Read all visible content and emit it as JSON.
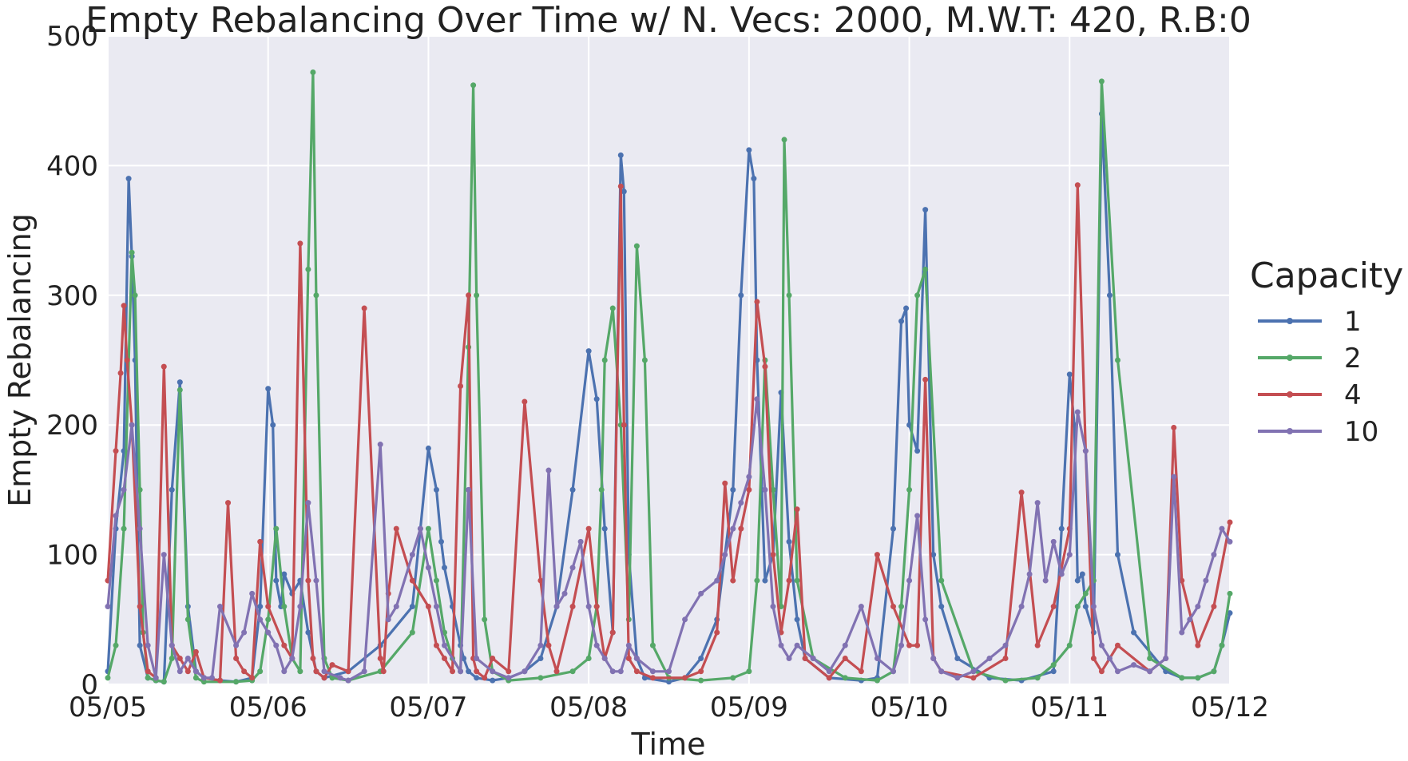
{
  "chart_data": {
    "type": "line",
    "title": "Empty Rebalancing Over Time w/ N. Vecs: 2000, M.W.T: 420, R.B:0",
    "xlabel": "Time",
    "ylabel": "Empty Rebalancing",
    "xlim": [
      0,
      7
    ],
    "ylim": [
      0,
      500
    ],
    "yticks": [
      0,
      100,
      200,
      300,
      400,
      500
    ],
    "x_tick_labels": [
      "05/05",
      "05/06",
      "05/07",
      "05/08",
      "05/09",
      "05/10",
      "05/11",
      "05/12"
    ],
    "grid": true,
    "legend": {
      "title": "Capacity",
      "position": "right"
    },
    "x_unit": "days since 05/05",
    "series": [
      {
        "name": "1",
        "color": "#4C72B0",
        "x": [
          0.0,
          0.05,
          0.1,
          0.13,
          0.15,
          0.17,
          0.2,
          0.25,
          0.3,
          0.35,
          0.4,
          0.45,
          0.5,
          0.55,
          0.6,
          0.7,
          0.8,
          0.9,
          0.95,
          1.0,
          1.03,
          1.05,
          1.08,
          1.1,
          1.15,
          1.2,
          1.25,
          1.3,
          1.35,
          1.5,
          1.7,
          1.9,
          1.95,
          2.0,
          2.05,
          2.08,
          2.1,
          2.15,
          2.2,
          2.22,
          2.25,
          2.3,
          2.4,
          2.5,
          2.6,
          2.7,
          2.8,
          2.9,
          3.0,
          3.05,
          3.1,
          3.15,
          3.2,
          3.22,
          3.25,
          3.3,
          3.35,
          3.5,
          3.6,
          3.7,
          3.8,
          3.9,
          3.95,
          4.0,
          4.03,
          4.05,
          4.08,
          4.1,
          4.15,
          4.2,
          4.25,
          4.3,
          4.35,
          4.5,
          4.7,
          4.8,
          4.9,
          4.95,
          4.98,
          5.0,
          5.05,
          5.1,
          5.15,
          5.2,
          5.3,
          5.5,
          5.7,
          5.9,
          5.95,
          6.0,
          6.03,
          6.05,
          6.08,
          6.1,
          6.15,
          6.2,
          6.25,
          6.3,
          6.4,
          6.6,
          6.7,
          6.8,
          6.9,
          6.95,
          7.0
        ],
        "y": [
          10,
          120,
          180,
          390,
          330,
          250,
          30,
          5,
          3,
          2,
          150,
          233,
          60,
          10,
          5,
          3,
          2,
          5,
          60,
          228,
          200,
          80,
          60,
          85,
          70,
          80,
          40,
          10,
          5,
          10,
          30,
          60,
          120,
          182,
          150,
          110,
          90,
          60,
          30,
          20,
          10,
          5,
          3,
          5,
          10,
          20,
          60,
          150,
          257,
          220,
          120,
          40,
          408,
          380,
          100,
          20,
          5,
          2,
          5,
          20,
          50,
          150,
          300,
          412,
          390,
          250,
          150,
          80,
          100,
          225,
          110,
          50,
          20,
          5,
          3,
          5,
          120,
          280,
          290,
          200,
          180,
          366,
          100,
          60,
          20,
          5,
          3,
          10,
          120,
          239,
          200,
          80,
          85,
          60,
          40,
          440,
          300,
          100,
          40,
          10,
          5,
          5,
          10,
          30,
          55
        ]
      },
      {
        "name": "2",
        "color": "#55A868",
        "x": [
          0.0,
          0.05,
          0.1,
          0.15,
          0.17,
          0.2,
          0.22,
          0.25,
          0.3,
          0.35,
          0.4,
          0.45,
          0.5,
          0.55,
          0.6,
          0.8,
          0.9,
          0.95,
          1.0,
          1.05,
          1.1,
          1.15,
          1.2,
          1.25,
          1.28,
          1.3,
          1.35,
          1.4,
          1.5,
          1.7,
          1.9,
          2.0,
          2.05,
          2.1,
          2.15,
          2.2,
          2.25,
          2.28,
          2.3,
          2.35,
          2.4,
          2.5,
          2.7,
          2.9,
          3.0,
          3.05,
          3.08,
          3.1,
          3.15,
          3.2,
          3.25,
          3.3,
          3.35,
          3.4,
          3.5,
          3.7,
          3.9,
          4.0,
          4.05,
          4.1,
          4.15,
          4.2,
          4.22,
          4.25,
          4.3,
          4.4,
          4.6,
          4.8,
          4.9,
          4.95,
          5.0,
          5.05,
          5.1,
          5.2,
          5.4,
          5.6,
          5.8,
          5.9,
          6.0,
          6.05,
          6.1,
          6.15,
          6.2,
          6.3,
          6.5,
          6.7,
          6.8,
          6.9,
          6.95,
          7.0
        ],
        "y": [
          5,
          30,
          120,
          333,
          300,
          150,
          40,
          5,
          3,
          2,
          20,
          227,
          50,
          5,
          2,
          2,
          3,
          10,
          50,
          120,
          60,
          20,
          10,
          320,
          472,
          300,
          20,
          5,
          3,
          10,
          40,
          120,
          80,
          40,
          20,
          10,
          260,
          462,
          300,
          50,
          10,
          3,
          5,
          10,
          20,
          60,
          150,
          250,
          290,
          200,
          50,
          338,
          250,
          30,
          5,
          3,
          5,
          10,
          80,
          250,
          150,
          60,
          420,
          300,
          80,
          20,
          5,
          3,
          10,
          60,
          150,
          300,
          320,
          80,
          10,
          3,
          5,
          15,
          30,
          60,
          70,
          80,
          465,
          250,
          20,
          5,
          5,
          10,
          30,
          70
        ]
      },
      {
        "name": "4",
        "color": "#C44E52",
        "x": [
          0.0,
          0.05,
          0.08,
          0.1,
          0.12,
          0.15,
          0.2,
          0.25,
          0.3,
          0.35,
          0.4,
          0.45,
          0.5,
          0.55,
          0.6,
          0.7,
          0.75,
          0.8,
          0.85,
          0.9,
          0.95,
          1.0,
          1.1,
          1.15,
          1.2,
          1.25,
          1.28,
          1.3,
          1.35,
          1.4,
          1.5,
          1.6,
          1.7,
          1.72,
          1.75,
          1.8,
          1.9,
          2.0,
          2.05,
          2.1,
          2.15,
          2.2,
          2.25,
          2.28,
          2.3,
          2.35,
          2.4,
          2.5,
          2.6,
          2.7,
          2.75,
          2.8,
          2.9,
          3.0,
          3.05,
          3.1,
          3.15,
          3.2,
          3.22,
          3.25,
          3.3,
          3.4,
          3.6,
          3.7,
          3.8,
          3.85,
          3.9,
          3.95,
          4.0,
          4.05,
          4.1,
          4.15,
          4.2,
          4.25,
          4.3,
          4.35,
          4.5,
          4.6,
          4.7,
          4.8,
          4.9,
          5.0,
          5.05,
          5.1,
          5.15,
          5.2,
          5.4,
          5.6,
          5.7,
          5.8,
          5.9,
          6.0,
          6.05,
          6.1,
          6.15,
          6.2,
          6.3,
          6.5,
          6.6,
          6.65,
          6.7,
          6.8,
          6.9,
          7.0
        ],
        "y": [
          80,
          180,
          240,
          292,
          250,
          200,
          60,
          10,
          5,
          245,
          30,
          20,
          10,
          25,
          5,
          3,
          140,
          20,
          10,
          5,
          110,
          60,
          30,
          20,
          340,
          80,
          20,
          10,
          5,
          15,
          10,
          290,
          20,
          10,
          70,
          120,
          80,
          60,
          30,
          20,
          10,
          230,
          300,
          20,
          10,
          5,
          20,
          10,
          218,
          80,
          30,
          10,
          60,
          120,
          60,
          20,
          40,
          384,
          200,
          20,
          10,
          5,
          5,
          10,
          40,
          155,
          80,
          120,
          150,
          295,
          245,
          100,
          40,
          80,
          135,
          20,
          5,
          20,
          10,
          100,
          60,
          30,
          30,
          235,
          20,
          10,
          5,
          20,
          148,
          30,
          60,
          120,
          385,
          180,
          20,
          10,
          30,
          10,
          20,
          198,
          80,
          30,
          60,
          125
        ]
      },
      {
        "name": "10",
        "color": "#8172B2",
        "x": [
          0.0,
          0.05,
          0.1,
          0.15,
          0.2,
          0.25,
          0.3,
          0.35,
          0.4,
          0.45,
          0.5,
          0.55,
          0.6,
          0.65,
          0.7,
          0.8,
          0.85,
          0.9,
          0.95,
          1.0,
          1.05,
          1.1,
          1.15,
          1.2,
          1.25,
          1.3,
          1.35,
          1.45,
          1.5,
          1.6,
          1.7,
          1.75,
          1.8,
          1.9,
          1.95,
          2.0,
          2.05,
          2.1,
          2.2,
          2.25,
          2.3,
          2.4,
          2.5,
          2.6,
          2.7,
          2.75,
          2.8,
          2.85,
          2.9,
          2.95,
          3.0,
          3.05,
          3.1,
          3.15,
          3.2,
          3.25,
          3.3,
          3.4,
          3.5,
          3.6,
          3.7,
          3.8,
          3.85,
          3.9,
          3.95,
          4.0,
          4.05,
          4.1,
          4.15,
          4.2,
          4.25,
          4.3,
          4.4,
          4.5,
          4.6,
          4.7,
          4.8,
          4.9,
          4.95,
          5.0,
          5.05,
          5.1,
          5.15,
          5.2,
          5.3,
          5.4,
          5.5,
          5.6,
          5.7,
          5.75,
          5.8,
          5.85,
          5.9,
          5.95,
          6.0,
          6.05,
          6.1,
          6.15,
          6.2,
          6.25,
          6.3,
          6.4,
          6.5,
          6.6,
          6.65,
          6.7,
          6.75,
          6.8,
          6.85,
          6.9,
          6.95,
          7.0
        ],
        "y": [
          60,
          130,
          150,
          200,
          120,
          30,
          5,
          100,
          30,
          10,
          20,
          10,
          5,
          5,
          60,
          30,
          40,
          70,
          50,
          40,
          30,
          10,
          20,
          60,
          140,
          80,
          10,
          5,
          3,
          10,
          185,
          50,
          60,
          100,
          120,
          90,
          60,
          30,
          10,
          150,
          20,
          10,
          5,
          10,
          30,
          165,
          60,
          70,
          90,
          110,
          60,
          30,
          20,
          10,
          10,
          30,
          20,
          10,
          10,
          50,
          70,
          80,
          100,
          120,
          140,
          160,
          220,
          150,
          60,
          30,
          20,
          30,
          20,
          10,
          30,
          60,
          20,
          10,
          30,
          80,
          130,
          50,
          20,
          10,
          5,
          10,
          20,
          30,
          60,
          85,
          140,
          80,
          110,
          85,
          100,
          210,
          180,
          60,
          30,
          20,
          10,
          15,
          10,
          20,
          160,
          40,
          50,
          60,
          80,
          100,
          120,
          110
        ]
      }
    ]
  }
}
